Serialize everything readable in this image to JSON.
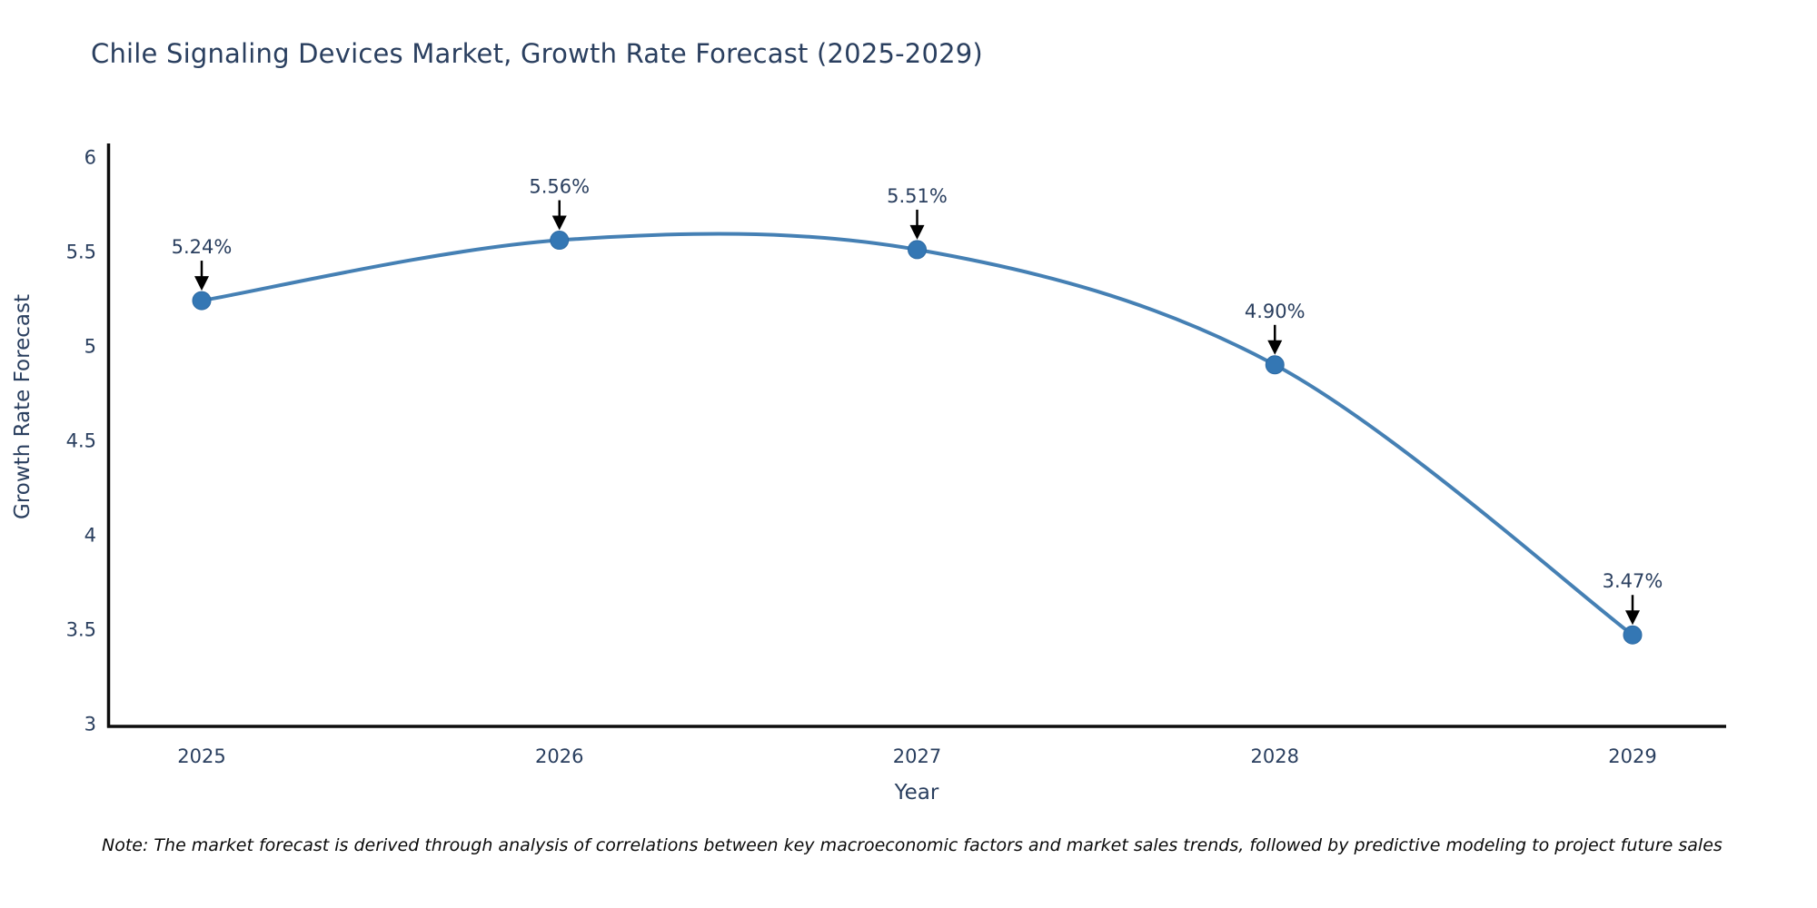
{
  "title": "Chile Signaling Devices Market, Growth Rate Forecast (2025-2029)",
  "note": "Note: The market forecast is derived through analysis of correlations between key macroeconomic factors and market sales trends, followed by predictive modeling to project future sales",
  "chart_data": {
    "type": "line",
    "title": "Chile Signaling Devices Market, Growth Rate Forecast (2025-2029)",
    "xlabel": "Year",
    "ylabel": "Growth Rate Forecast",
    "x": [
      2025,
      2026,
      2027,
      2028,
      2029
    ],
    "y": [
      5.24,
      5.56,
      5.51,
      4.9,
      3.47
    ],
    "point_labels": [
      "5.24%",
      "5.56%",
      "5.51%",
      "4.90%",
      "3.47%"
    ],
    "xticks": [
      "2025",
      "2026",
      "2027",
      "2028",
      "2029"
    ],
    "yticks": [
      3,
      3.5,
      4,
      4.5,
      5,
      5.5,
      6
    ],
    "ytick_labels": [
      "3",
      "3.5",
      "4",
      "4.5",
      "5",
      "5.5",
      "6"
    ],
    "ylim": [
      3,
      6
    ],
    "grid": false,
    "legend": "none",
    "line_shape": "spline",
    "annotation_arrows": "down-to-point",
    "colors": {
      "line": "#4580b4",
      "marker": "#3477b4",
      "marker_edge": "#2d6aa3",
      "arrow": "#000000",
      "axis": "#0d0d0d",
      "text": "#2a3f5f",
      "background": "#ffffff"
    }
  }
}
